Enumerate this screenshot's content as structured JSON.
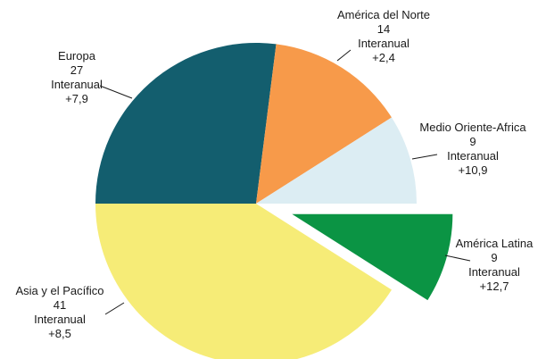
{
  "chart_data": {
    "type": "pie",
    "start_angle_deg": 180,
    "direction": "clockwise",
    "slices": [
      {
        "label": "Europa",
        "value": 27,
        "line2": "Interanual",
        "change": "+7,9",
        "color": "#135E6E",
        "exploded": false
      },
      {
        "label": "América del Norte",
        "value": 14,
        "line2": "Interanual",
        "change": "+2,4",
        "color": "#F79A4A",
        "exploded": false
      },
      {
        "label": "Medio Oriente-Africa",
        "value": 9,
        "line2": "Interanual",
        "change": "+10,9",
        "color": "#DCEDF3",
        "exploded": false
      },
      {
        "label": "América Latina",
        "value": 9,
        "line2": "Interanual",
        "change": "+12,7",
        "color": "#0B9444",
        "exploded": true
      },
      {
        "label": "Asia y el Pacífico",
        "value": 41,
        "line2": "Interanual",
        "change": "+8,5",
        "color": "#F6EC77",
        "exploded": false
      }
    ]
  }
}
